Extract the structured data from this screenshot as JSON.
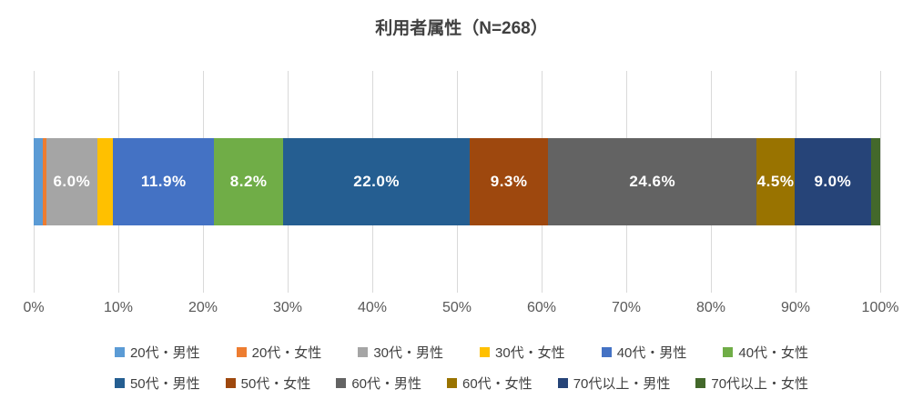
{
  "title": "利用者属性（N=268）",
  "chart_data": {
    "type": "bar",
    "subtype": "horizontal-100%-stacked",
    "title": "利用者属性（N=268）",
    "n_total": 268,
    "legend_position": "bottom",
    "legend_rows": 2,
    "grid": true,
    "x_axis": {
      "range": [
        0,
        100
      ],
      "ticks": [
        "0%",
        "10%",
        "20%",
        "30%",
        "40%",
        "50%",
        "60%",
        "70%",
        "80%",
        "90%",
        "100%"
      ]
    },
    "series": [
      {
        "name": "20代・男性",
        "value": 1.1,
        "label": null,
        "color": "#5B9BD5"
      },
      {
        "name": "20代・女性",
        "value": 0.4,
        "label": null,
        "color": "#ED7D31"
      },
      {
        "name": "30代・男性",
        "value": 6.0,
        "label": "6.0%",
        "color": "#A5A5A5"
      },
      {
        "name": "30代・女性",
        "value": 1.9,
        "label": null,
        "color": "#FFC000"
      },
      {
        "name": "40代・男性",
        "value": 11.9,
        "label": "11.9%",
        "color": "#4472C4"
      },
      {
        "name": "40代・女性",
        "value": 8.2,
        "label": "8.2%",
        "color": "#70AD47"
      },
      {
        "name": "50代・男性",
        "value": 22.0,
        "label": "22.0%",
        "color": "#255E91"
      },
      {
        "name": "50代・女性",
        "value": 9.3,
        "label": "9.3%",
        "color": "#9E480E"
      },
      {
        "name": "60代・男性",
        "value": 24.6,
        "label": "24.6%",
        "color": "#636363"
      },
      {
        "name": "60代・女性",
        "value": 4.5,
        "label": "4.5%",
        "color": "#997300"
      },
      {
        "name": "70代以上・男性",
        "value": 9.0,
        "label": "9.0%",
        "color": "#264478"
      },
      {
        "name": "70代以上・女性",
        "value": 1.1,
        "label": null,
        "color": "#43682B"
      }
    ]
  }
}
